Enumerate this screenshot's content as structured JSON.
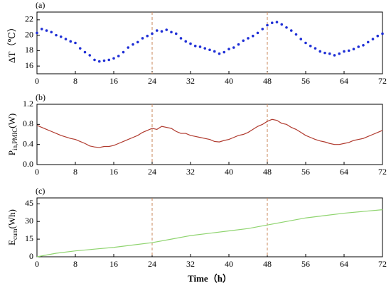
{
  "chart_data": [
    {
      "type": "scatter",
      "panel_label": "(a)",
      "y_label": {
        "main": "ΔT（℃）"
      },
      "color": "#1f2fd6",
      "vlines": [
        24,
        48
      ],
      "vline_color": "#c8875a",
      "x": [
        0,
        1,
        2,
        3,
        4,
        5,
        6,
        7,
        8,
        9,
        10,
        11,
        12,
        13,
        14,
        15,
        16,
        17,
        18,
        19,
        20,
        21,
        22,
        23,
        24,
        25,
        26,
        27,
        28,
        29,
        30,
        31,
        32,
        33,
        34,
        35,
        36,
        37,
        38,
        39,
        40,
        41,
        42,
        43,
        44,
        45,
        46,
        47,
        48,
        49,
        50,
        51,
        52,
        53,
        54,
        55,
        56,
        57,
        58,
        59,
        60,
        61,
        62,
        63,
        64,
        65,
        66,
        67,
        68,
        69,
        70,
        71,
        72
      ],
      "values": [
        20.3,
        20.8,
        20.6,
        20.4,
        20.0,
        19.8,
        19.5,
        19.2,
        19.0,
        18.3,
        17.8,
        17.4,
        16.8,
        16.6,
        16.7,
        16.8,
        17.0,
        17.3,
        17.8,
        18.4,
        18.8,
        19.1,
        19.6,
        19.9,
        20.2,
        20.6,
        20.5,
        20.7,
        20.4,
        20.2,
        19.6,
        19.2,
        18.9,
        18.6,
        18.5,
        18.3,
        18.1,
        17.9,
        17.6,
        17.8,
        18.2,
        18.4,
        18.8,
        19.3,
        19.6,
        19.9,
        20.3,
        20.8,
        21.3,
        21.6,
        21.7,
        21.4,
        21.0,
        20.6,
        20.1,
        19.5,
        19.0,
        18.6,
        18.3,
        17.9,
        17.7,
        17.6,
        17.4,
        17.6,
        17.9,
        18.0,
        18.2,
        18.5,
        18.7,
        19.1,
        19.5,
        19.9,
        20.2
      ],
      "xlim": [
        0,
        72
      ],
      "xticks": [
        0,
        8,
        16,
        24,
        32,
        40,
        48,
        56,
        64,
        72
      ],
      "ylim": [
        15,
        23
      ],
      "yticks": [
        16,
        18,
        20,
        22
      ]
    },
    {
      "type": "line",
      "panel_label": "(b)",
      "y_label": {
        "main": "P",
        "sub": "in,PMIC",
        "unit": "(W)"
      },
      "color": "#b03a2e",
      "vlines": [
        24,
        48
      ],
      "vline_color": "#c8875a",
      "x": [
        0,
        1,
        2,
        3,
        4,
        5,
        6,
        7,
        8,
        9,
        10,
        11,
        12,
        13,
        14,
        15,
        16,
        17,
        18,
        19,
        20,
        21,
        22,
        23,
        24,
        25,
        26,
        27,
        28,
        29,
        30,
        31,
        32,
        33,
        34,
        35,
        36,
        37,
        38,
        39,
        40,
        41,
        42,
        43,
        44,
        45,
        46,
        47,
        48,
        49,
        50,
        51,
        52,
        53,
        54,
        55,
        56,
        57,
        58,
        59,
        60,
        61,
        62,
        63,
        64,
        65,
        66,
        67,
        68,
        69,
        70,
        71,
        72
      ],
      "values": [
        0.78,
        0.74,
        0.7,
        0.66,
        0.62,
        0.58,
        0.55,
        0.52,
        0.5,
        0.46,
        0.42,
        0.37,
        0.35,
        0.34,
        0.36,
        0.36,
        0.38,
        0.42,
        0.46,
        0.5,
        0.54,
        0.58,
        0.64,
        0.68,
        0.72,
        0.7,
        0.76,
        0.74,
        0.72,
        0.66,
        0.62,
        0.62,
        0.58,
        0.56,
        0.54,
        0.52,
        0.5,
        0.46,
        0.45,
        0.48,
        0.5,
        0.54,
        0.58,
        0.6,
        0.64,
        0.7,
        0.76,
        0.8,
        0.86,
        0.9,
        0.88,
        0.82,
        0.8,
        0.74,
        0.7,
        0.64,
        0.58,
        0.54,
        0.5,
        0.47,
        0.45,
        0.42,
        0.4,
        0.4,
        0.42,
        0.44,
        0.48,
        0.5,
        0.52,
        0.56,
        0.6,
        0.64,
        0.68
      ],
      "xlim": [
        0,
        72
      ],
      "xticks": [
        0,
        8,
        16,
        24,
        32,
        40,
        48,
        56,
        64,
        72
      ],
      "ylim": [
        0,
        1.2
      ],
      "yticks": [
        {
          "value": 0,
          "label": "0.0"
        },
        0.4,
        0.8,
        1.2
      ]
    },
    {
      "type": "line",
      "panel_label": "(c)",
      "y_label": {
        "main": "E",
        "sub": "cum",
        "unit": "(Wh)"
      },
      "x_label": "Time（h）",
      "color": "#8fd46f",
      "vlines": [
        24,
        48
      ],
      "vline_color": "#c8875a",
      "x": [
        0,
        4,
        8,
        12,
        16,
        20,
        24,
        28,
        32,
        36,
        40,
        44,
        48,
        52,
        56,
        60,
        64,
        68,
        72
      ],
      "values": [
        0,
        3,
        5,
        6.5,
        8,
        10,
        12,
        15,
        18,
        20,
        22,
        24,
        27,
        30,
        33,
        35,
        37,
        38.5,
        40
      ],
      "xlim": [
        0,
        72
      ],
      "xticks": [
        0,
        8,
        16,
        24,
        32,
        40,
        48,
        56,
        64,
        72
      ],
      "ylim": [
        0,
        50
      ],
      "yticks": [
        0,
        15,
        30,
        45
      ]
    }
  ]
}
